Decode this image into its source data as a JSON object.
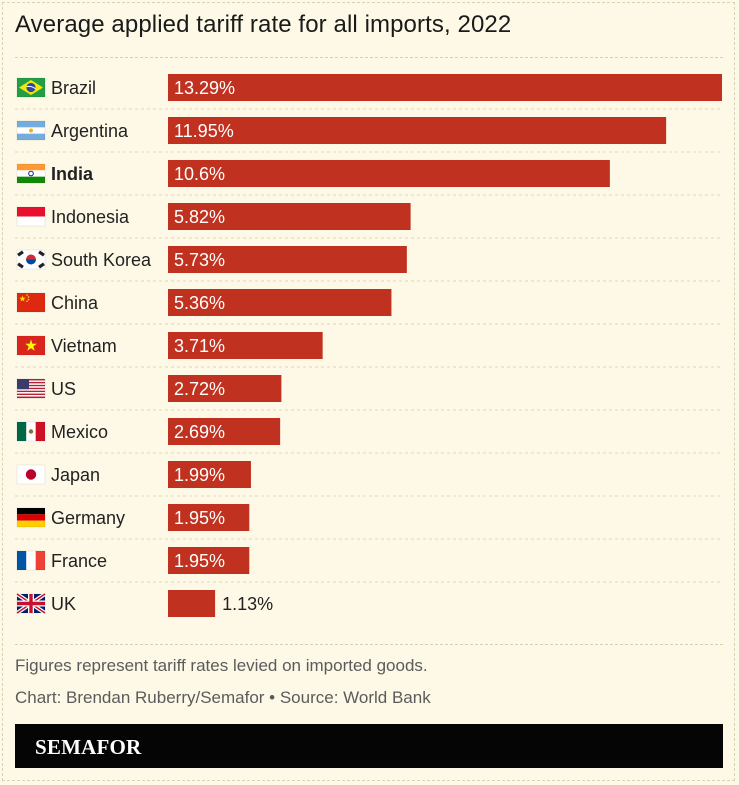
{
  "title": "Average applied tariff rate for all imports, 2022",
  "chart_data": {
    "type": "bar",
    "orientation": "horizontal",
    "title": "Average applied tariff rate for all imports, 2022",
    "xlim": [
      0,
      13.29
    ],
    "grid": false,
    "bar_color": "#c0321f",
    "highlight_category": "India",
    "categories": [
      "Brazil",
      "Argentina",
      "India",
      "Indonesia",
      "South Korea",
      "China",
      "Vietnam",
      "US",
      "Mexico",
      "Japan",
      "Germany",
      "France",
      "UK"
    ],
    "values": [
      13.29,
      11.95,
      10.6,
      5.82,
      5.73,
      5.36,
      3.71,
      2.72,
      2.69,
      1.99,
      1.95,
      1.95,
      1.13
    ],
    "labels": [
      "13.29%",
      "11.95%",
      "10.6%",
      "5.82%",
      "5.73%",
      "5.36%",
      "3.71%",
      "2.72%",
      "2.69%",
      "1.99%",
      "1.95%",
      "1.95%",
      "1.13%"
    ],
    "flag_icons": [
      "brazil-flag-icon",
      "argentina-flag-icon",
      "india-flag-icon",
      "indonesia-flag-icon",
      "south-korea-flag-icon",
      "china-flag-icon",
      "vietnam-flag-icon",
      "us-flag-icon",
      "mexico-flag-icon",
      "japan-flag-icon",
      "germany-flag-icon",
      "france-flag-icon",
      "uk-flag-icon"
    ]
  },
  "footer": {
    "note": "Figures represent tariff rates levied on imported goods.",
    "credit": "Chart: Brendan Ruberry/Semafor • Source: World Bank",
    "brand": "SEMAFOR"
  }
}
